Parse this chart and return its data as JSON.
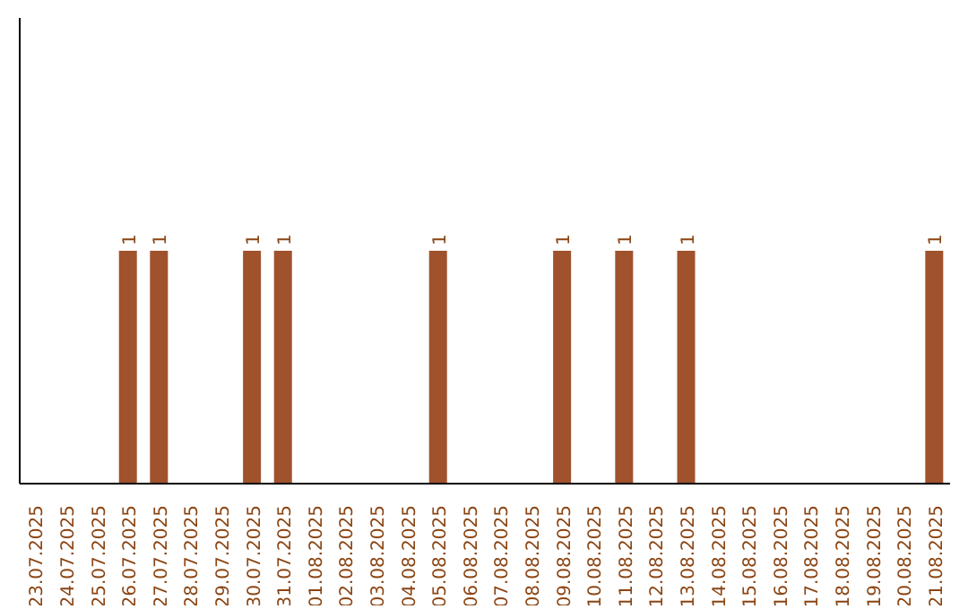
{
  "chart_data": {
    "type": "bar",
    "categories": [
      "23.07.2025",
      "24.07.2025",
      "25.07.2025",
      "26.07.2025",
      "27.07.2025",
      "28.07.2025",
      "29.07.2025",
      "30.07.2025",
      "31.07.2025",
      "01.08.2025",
      "02.08.2025",
      "03.08.2025",
      "04.08.2025",
      "05.08.2025",
      "06.08.2025",
      "07.08.2025",
      "08.08.2025",
      "09.08.2025",
      "10.08.2025",
      "11.08.2025",
      "12.08.2025",
      "13.08.2025",
      "14.08.2025",
      "15.08.2025",
      "16.08.2025",
      "17.08.2025",
      "18.08.2025",
      "19.08.2025",
      "20.08.2025",
      "21.08.2025"
    ],
    "values": [
      0,
      0,
      0,
      1,
      1,
      0,
      0,
      1,
      1,
      0,
      0,
      0,
      0,
      1,
      0,
      0,
      0,
      1,
      0,
      1,
      0,
      1,
      0,
      0,
      0,
      0,
      0,
      0,
      0,
      1
    ],
    "value_labels": [
      null,
      null,
      null,
      "1",
      "1",
      null,
      null,
      "1",
      "1",
      null,
      null,
      null,
      null,
      "1",
      null,
      null,
      null,
      "1",
      null,
      "1",
      null,
      "1",
      null,
      null,
      null,
      null,
      null,
      null,
      null,
      "1"
    ],
    "color": "#a0522d",
    "ylim": [
      0,
      2
    ],
    "tick_labels": "x",
    "grid": false,
    "legend": false
  }
}
